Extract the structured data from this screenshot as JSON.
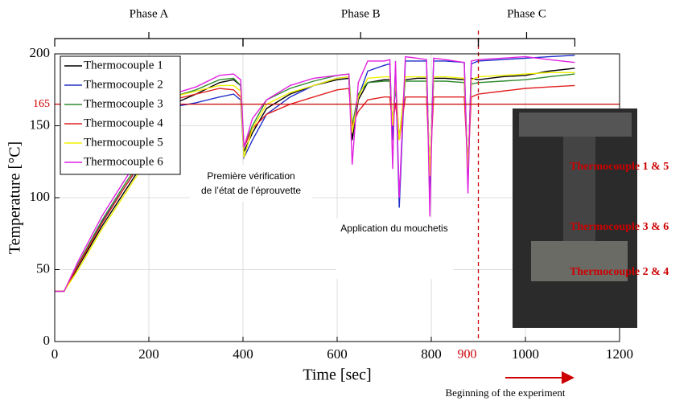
{
  "chart_data": {
    "type": "line",
    "x_label": "Time [sec]",
    "y_label": "Temperature [°C]",
    "xlim": [
      0,
      1200
    ],
    "ylim": [
      0,
      200
    ],
    "xticks": [
      0,
      200,
      400,
      600,
      800,
      1000,
      1200
    ],
    "yticks": [
      0,
      50,
      100,
      150,
      200
    ],
    "grid": true,
    "legend": "upper left",
    "hline": {
      "value": 165,
      "color": "#cc0000"
    },
    "vline": {
      "value": 900,
      "color": "#cc0000"
    },
    "phases": [
      {
        "label": "Phase A",
        "start": 0,
        "end": 400
      },
      {
        "label": "Phase B",
        "start": 400,
        "end": 900
      },
      {
        "label": "Phase C",
        "start": 900,
        "end": 1105
      }
    ],
    "annotations": [
      "Première vérification",
      "de l’état de l’éprouvette",
      "Application du mouchetis",
      "Beginning of the experiment"
    ],
    "photo_labels": [
      "Thermocouple 1 & 5",
      "Thermocouple 3 & 6",
      "Thermocouple 2 & 4"
    ],
    "x": [
      0,
      20,
      50,
      100,
      150,
      200,
      250,
      300,
      350,
      380,
      395,
      402,
      420,
      450,
      500,
      550,
      600,
      625,
      632,
      645,
      665,
      700,
      712,
      718,
      724,
      732,
      745,
      770,
      790,
      797,
      805,
      830,
      870,
      878,
      885,
      900,
      950,
      1000,
      1050,
      1105
    ],
    "series": [
      {
        "name": "Thermocouple 1",
        "color": "#000000",
        "values": [
          35,
          35,
          52,
          80,
          105,
          130,
          165,
          172,
          180,
          182,
          178,
          132,
          145,
          162,
          172,
          178,
          182,
          183,
          140,
          168,
          180,
          182,
          182,
          150,
          180,
          140,
          182,
          183,
          183,
          115,
          183,
          183,
          182,
          120,
          183,
          182,
          184,
          185,
          188,
          190
        ]
      },
      {
        "name": "Thermocouple 2",
        "color": "#1f2fc8",
        "values": [
          35,
          35,
          54,
          83,
          108,
          132,
          163,
          166,
          170,
          172,
          168,
          128,
          140,
          158,
          170,
          178,
          183,
          184,
          145,
          170,
          188,
          192,
          193,
          140,
          190,
          93,
          195,
          195,
          195,
          105,
          195,
          195,
          194,
          110,
          193,
          195,
          196,
          197,
          198,
          199
        ]
      },
      {
        "name": "Thermocouple 3",
        "color": "#2e8b2e",
        "values": [
          35,
          35,
          54,
          84,
          110,
          134,
          170,
          175,
          182,
          183,
          178,
          135,
          150,
          168,
          176,
          181,
          185,
          186,
          150,
          172,
          180,
          181,
          181,
          150,
          178,
          140,
          181,
          181,
          181,
          115,
          181,
          181,
          180,
          118,
          179,
          180,
          181,
          182,
          184,
          186
        ]
      },
      {
        "name": "Thermocouple 4",
        "color": "#e02020",
        "values": [
          35,
          35,
          53,
          82,
          108,
          133,
          168,
          172,
          176,
          175,
          170,
          135,
          148,
          158,
          165,
          170,
          175,
          176,
          150,
          160,
          168,
          170,
          170,
          150,
          166,
          140,
          170,
          170,
          170,
          118,
          170,
          170,
          170,
          120,
          170,
          172,
          174,
          176,
          177,
          178
        ]
      },
      {
        "name": "Thermocouple 5",
        "color": "#f0f000",
        "values": [
          35,
          35,
          50,
          78,
          103,
          128,
          170,
          174,
          178,
          178,
          174,
          128,
          148,
          165,
          173,
          178,
          183,
          184,
          145,
          170,
          183,
          184,
          184,
          150,
          182,
          140,
          184,
          184,
          184,
          115,
          184,
          184,
          183,
          120,
          182,
          184,
          185,
          186,
          187,
          187
        ]
      },
      {
        "name": "Thermocouple 6",
        "color": "#e020e0",
        "values": [
          35,
          35,
          56,
          87,
          113,
          138,
          172,
          177,
          185,
          186,
          182,
          135,
          155,
          168,
          178,
          183,
          185,
          186,
          123,
          180,
          195,
          195,
          196,
          120,
          195,
          100,
          198,
          197,
          196,
          87,
          197,
          196,
          194,
          103,
          195,
          196,
          197,
          198,
          196,
          194
        ]
      }
    ]
  }
}
